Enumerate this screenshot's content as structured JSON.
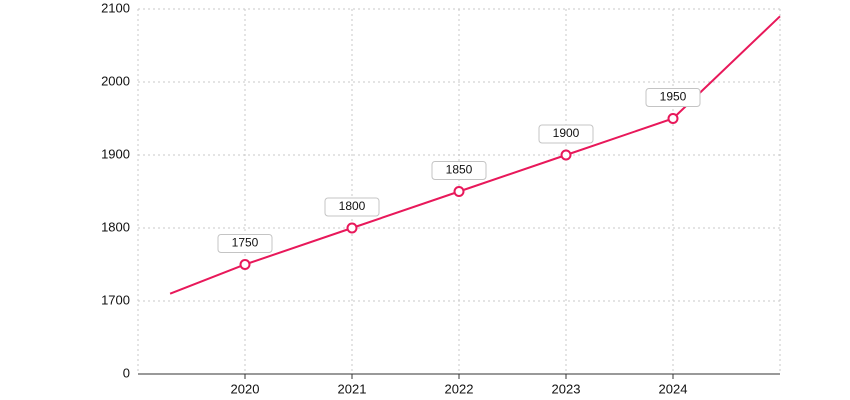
{
  "chart_data": {
    "type": "line",
    "x": [
      2019.3,
      2020,
      2021,
      2022,
      2023,
      2024,
      2025
    ],
    "series": [
      {
        "color": "#e8185a",
        "values": [
          1710,
          1750,
          1800,
          1850,
          1900,
          1950,
          2090
        ]
      }
    ],
    "xlim": [
      2019,
      2025
    ],
    "xticks": [
      2020,
      2021,
      2022,
      2023,
      2024
    ],
    "ylim": [
      0,
      2100
    ],
    "yticks": [
      0,
      1700,
      1800,
      1900,
      2000,
      2100
    ],
    "grid": true
  }
}
